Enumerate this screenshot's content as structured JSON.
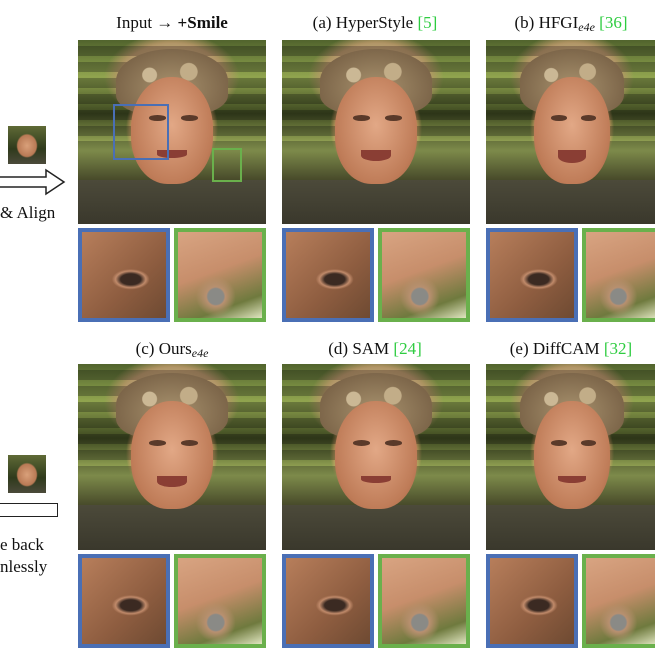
{
  "left_panel": {
    "top_text": "& Align",
    "bottom_text_line1": "e back",
    "bottom_text_line2": "nlessly"
  },
  "columns_row1": [
    {
      "prefix": "Input → ",
      "bold": "+Smile",
      "ref": ""
    },
    {
      "prefix": "(a) HyperStyle ",
      "bold": "",
      "ref": "[5]"
    },
    {
      "prefix": "(b) HFGI",
      "sub": "e4e",
      "ref": "[36]"
    }
  ],
  "columns_row2": [
    {
      "prefix": "(c) Ours",
      "sub": "e4e",
      "ref": ""
    },
    {
      "prefix": "(d) SAM ",
      "ref": "[24]"
    },
    {
      "prefix": "(e) DiffCAM ",
      "ref": "[32]"
    }
  ],
  "colors": {
    "blue_box": "#4a6fb5",
    "green_box": "#6ab04c",
    "ref_green": "#2ecc40"
  }
}
